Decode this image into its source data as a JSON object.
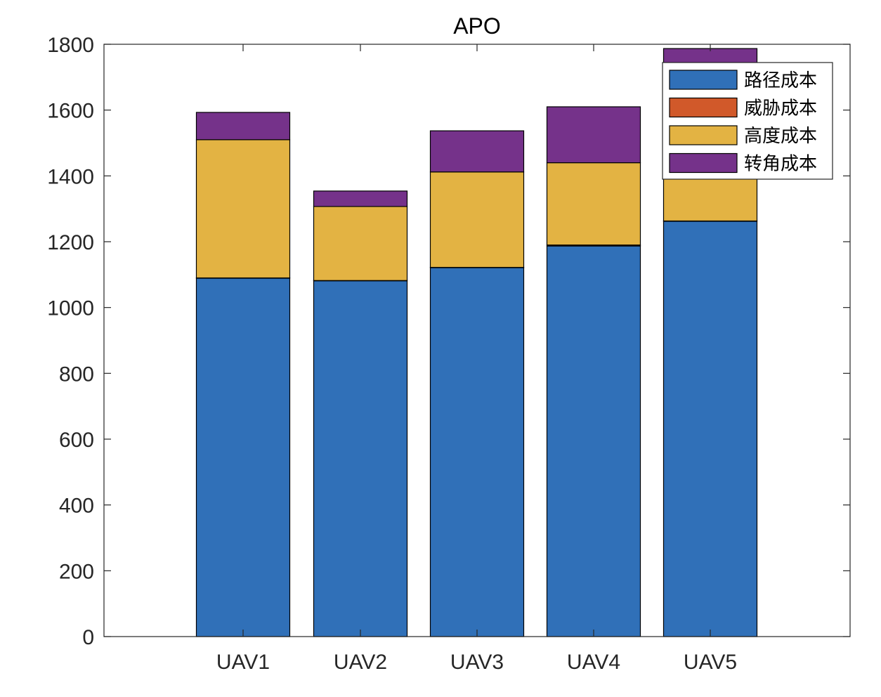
{
  "chart_data": {
    "type": "bar",
    "stacked": true,
    "title": "APO",
    "categories": [
      "UAV1",
      "UAV2",
      "UAV3",
      "UAV4",
      "UAV5"
    ],
    "series": [
      {
        "name": "路径成本",
        "color": "#3070B8",
        "values": [
          1090,
          1082,
          1122,
          1187,
          1263
        ]
      },
      {
        "name": "威胁成本",
        "color": "#D1592A",
        "values": [
          0,
          0,
          0,
          3,
          0
        ]
      },
      {
        "name": "高度成本",
        "color": "#E3B343",
        "values": [
          420,
          225,
          290,
          250,
          150
        ]
      },
      {
        "name": "转角成本",
        "color": "#75328A",
        "values": [
          83,
          47,
          125,
          170,
          374
        ]
      }
    ],
    "ylim": [
      0,
      1800
    ],
    "yticks": [
      "0",
      "200",
      "400",
      "600",
      "800",
      "1000",
      "1200",
      "1400",
      "1600",
      "1800"
    ],
    "legend_position": "top-right",
    "grid": false
  }
}
